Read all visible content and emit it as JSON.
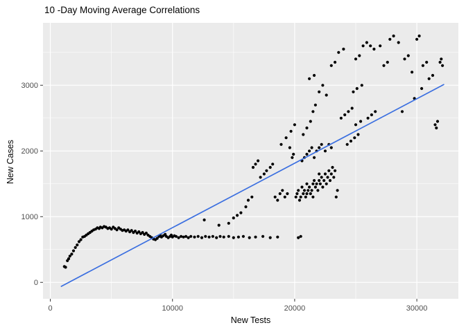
{
  "chart_data": {
    "type": "scatter",
    "title": "10 -Day Moving Average Correlations",
    "xlabel": "New Tests",
    "ylabel": "New Cases",
    "xlim": [
      -600,
      33400
    ],
    "ylim": [
      -250,
      3950
    ],
    "x_ticks": [
      0,
      10000,
      20000,
      30000
    ],
    "y_ticks": [
      0,
      1000,
      2000,
      3000
    ],
    "x_minor": [
      5000,
      15000,
      25000
    ],
    "y_minor": [
      500,
      1500,
      2500,
      3500
    ],
    "grid": true,
    "legend": "none",
    "panel_bg": "#EBEBEB",
    "grid_color": "#FFFFFF",
    "tick_color": "#333333",
    "tick_label_color": "#4D4D4D",
    "point_color": "#000000",
    "line_color": "#3B6FE0",
    "trend_line": {
      "x": [
        900,
        32200
      ],
      "y": [
        -60,
        3010
      ]
    },
    "points": [
      [
        1150,
        240
      ],
      [
        1250,
        230
      ],
      [
        1400,
        330
      ],
      [
        1500,
        360
      ],
      [
        1600,
        400
      ],
      [
        1750,
        430
      ],
      [
        1900,
        480
      ],
      [
        2050,
        530
      ],
      [
        2200,
        570
      ],
      [
        2350,
        620
      ],
      [
        2500,
        650
      ],
      [
        2650,
        690
      ],
      [
        2800,
        700
      ],
      [
        2950,
        720
      ],
      [
        3100,
        740
      ],
      [
        3250,
        760
      ],
      [
        3400,
        780
      ],
      [
        3550,
        800
      ],
      [
        3700,
        810
      ],
      [
        3850,
        830
      ],
      [
        4000,
        820
      ],
      [
        4100,
        840
      ],
      [
        4250,
        830
      ],
      [
        4400,
        850
      ],
      [
        4550,
        840
      ],
      [
        4700,
        820
      ],
      [
        4850,
        830
      ],
      [
        5000,
        810
      ],
      [
        5150,
        840
      ],
      [
        5300,
        820
      ],
      [
        5450,
        800
      ],
      [
        5600,
        830
      ],
      [
        5750,
        810
      ],
      [
        5900,
        790
      ],
      [
        6050,
        800
      ],
      [
        6200,
        780
      ],
      [
        6350,
        800
      ],
      [
        6500,
        770
      ],
      [
        6650,
        790
      ],
      [
        6800,
        760
      ],
      [
        6950,
        780
      ],
      [
        7100,
        750
      ],
      [
        7250,
        770
      ],
      [
        7400,
        740
      ],
      [
        7550,
        760
      ],
      [
        7700,
        730
      ],
      [
        7850,
        750
      ],
      [
        8000,
        720
      ],
      [
        8150,
        700
      ],
      [
        8300,
        680
      ],
      [
        8450,
        660
      ],
      [
        8600,
        650
      ],
      [
        8750,
        670
      ],
      [
        8900,
        700
      ],
      [
        9000,
        720
      ],
      [
        9100,
        690
      ],
      [
        9250,
        710
      ],
      [
        9400,
        730
      ],
      [
        9500,
        700
      ],
      [
        9650,
        680
      ],
      [
        9800,
        700
      ],
      [
        9900,
        720
      ],
      [
        10000,
        690
      ],
      [
        10150,
        710
      ],
      [
        10300,
        700
      ],
      [
        10500,
        680
      ],
      [
        10700,
        700
      ],
      [
        10900,
        690
      ],
      [
        11100,
        700
      ],
      [
        11300,
        680
      ],
      [
        11500,
        700
      ],
      [
        11800,
        690
      ],
      [
        12100,
        700
      ],
      [
        12400,
        680
      ],
      [
        12700,
        700
      ],
      [
        13000,
        690
      ],
      [
        13300,
        700
      ],
      [
        13600,
        680
      ],
      [
        13900,
        700
      ],
      [
        14200,
        690
      ],
      [
        14600,
        700
      ],
      [
        15000,
        680
      ],
      [
        15400,
        690
      ],
      [
        15800,
        700
      ],
      [
        16300,
        680
      ],
      [
        16800,
        690
      ],
      [
        17400,
        700
      ],
      [
        18000,
        680
      ],
      [
        18600,
        690
      ],
      [
        20300,
        680
      ],
      [
        20500,
        700
      ],
      [
        12600,
        950
      ],
      [
        13800,
        870
      ],
      [
        14600,
        900
      ],
      [
        15000,
        980
      ],
      [
        15300,
        1020
      ],
      [
        15600,
        1060
      ],
      [
        16000,
        1150
      ],
      [
        16200,
        1250
      ],
      [
        16500,
        1300
      ],
      [
        16600,
        1750
      ],
      [
        16800,
        1800
      ],
      [
        17000,
        1850
      ],
      [
        17200,
        1600
      ],
      [
        17500,
        1650
      ],
      [
        17700,
        1700
      ],
      [
        18000,
        1750
      ],
      [
        18200,
        1800
      ],
      [
        18400,
        1300
      ],
      [
        18600,
        1250
      ],
      [
        18800,
        1350
      ],
      [
        19000,
        1400
      ],
      [
        19200,
        1300
      ],
      [
        19400,
        1350
      ],
      [
        19600,
        2050
      ],
      [
        19800,
        1900
      ],
      [
        19900,
        1950
      ],
      [
        18900,
        2100
      ],
      [
        19300,
        2200
      ],
      [
        19700,
        2300
      ],
      [
        20000,
        2400
      ],
      [
        20100,
        1300
      ],
      [
        20200,
        1350
      ],
      [
        20300,
        1400
      ],
      [
        20400,
        1250
      ],
      [
        20500,
        1300
      ],
      [
        20600,
        1450
      ],
      [
        20700,
        1350
      ],
      [
        20800,
        1400
      ],
      [
        20900,
        1300
      ],
      [
        21000,
        1350
      ],
      [
        21000,
        1500
      ],
      [
        21100,
        1400
      ],
      [
        21200,
        1450
      ],
      [
        21300,
        1350
      ],
      [
        21400,
        1400
      ],
      [
        21500,
        1500
      ],
      [
        21500,
        1300
      ],
      [
        21600,
        1550
      ],
      [
        21700,
        1450
      ],
      [
        21800,
        1500
      ],
      [
        21900,
        1400
      ],
      [
        22000,
        1550
      ],
      [
        22000,
        1650
      ],
      [
        22100,
        1500
      ],
      [
        22200,
        1600
      ],
      [
        22300,
        1450
      ],
      [
        22400,
        1550
      ],
      [
        22500,
        1650
      ],
      [
        22600,
        1500
      ],
      [
        22700,
        1600
      ],
      [
        22800,
        1700
      ],
      [
        22900,
        1550
      ],
      [
        23000,
        1650
      ],
      [
        23100,
        1750
      ],
      [
        23200,
        1600
      ],
      [
        23300,
        1700
      ],
      [
        23400,
        1300
      ],
      [
        23500,
        1400
      ],
      [
        20600,
        1850
      ],
      [
        20800,
        1900
      ],
      [
        21000,
        1950
      ],
      [
        21200,
        2000
      ],
      [
        21400,
        2050
      ],
      [
        21600,
        1900
      ],
      [
        21800,
        2000
      ],
      [
        22000,
        2050
      ],
      [
        22200,
        2100
      ],
      [
        22500,
        2000
      ],
      [
        22800,
        2100
      ],
      [
        23000,
        2050
      ],
      [
        20700,
        2250
      ],
      [
        21000,
        2350
      ],
      [
        21300,
        2450
      ],
      [
        21500,
        2600
      ],
      [
        21700,
        2700
      ],
      [
        21200,
        3100
      ],
      [
        21600,
        3150
      ],
      [
        22000,
        2900
      ],
      [
        22300,
        3000
      ],
      [
        22600,
        2850
      ],
      [
        23000,
        3300
      ],
      [
        23300,
        3350
      ],
      [
        23600,
        3500
      ],
      [
        24000,
        3550
      ],
      [
        23800,
        2500
      ],
      [
        24100,
        2550
      ],
      [
        24400,
        2600
      ],
      [
        24700,
        2650
      ],
      [
        24300,
        2100
      ],
      [
        24600,
        2150
      ],
      [
        24900,
        2200
      ],
      [
        25200,
        2250
      ],
      [
        25000,
        2400
      ],
      [
        25400,
        2450
      ],
      [
        24800,
        2900
      ],
      [
        25100,
        2950
      ],
      [
        25500,
        3000
      ],
      [
        25000,
        3400
      ],
      [
        25300,
        3450
      ],
      [
        25600,
        3600
      ],
      [
        25900,
        3650
      ],
      [
        26200,
        3600
      ],
      [
        26500,
        3550
      ],
      [
        26000,
        2500
      ],
      [
        26300,
        2550
      ],
      [
        26600,
        2600
      ],
      [
        27000,
        3600
      ],
      [
        27300,
        3300
      ],
      [
        27600,
        3350
      ],
      [
        27800,
        3700
      ],
      [
        28100,
        3750
      ],
      [
        28500,
        3650
      ],
      [
        29000,
        3400
      ],
      [
        29300,
        3450
      ],
      [
        29600,
        3200
      ],
      [
        30000,
        3700
      ],
      [
        30200,
        3750
      ],
      [
        30500,
        3300
      ],
      [
        30800,
        3350
      ],
      [
        31000,
        3100
      ],
      [
        31300,
        3150
      ],
      [
        31500,
        2400
      ],
      [
        31700,
        2450
      ],
      [
        31900,
        3350
      ],
      [
        32000,
        3400
      ],
      [
        32100,
        3300
      ],
      [
        30400,
        2950
      ],
      [
        29800,
        2800
      ],
      [
        28800,
        2600
      ],
      [
        31600,
        2350
      ]
    ]
  }
}
